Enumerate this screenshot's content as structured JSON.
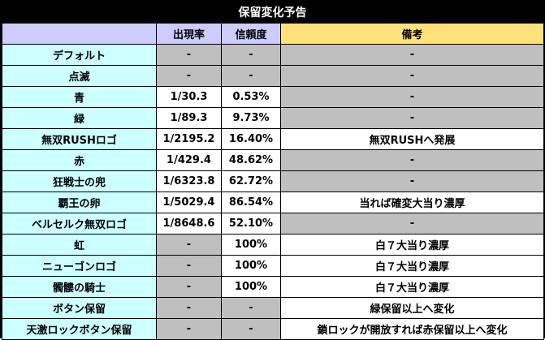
{
  "title": "保留変化予告",
  "headers": {
    "name": "",
    "rate": "出現率",
    "trust": "信頼度",
    "note": "備考"
  },
  "rows": [
    {
      "name": "デフォルト",
      "rate": "-",
      "trust": "-",
      "note": "-",
      "rate_gray": true,
      "trust_gray": true,
      "note_gray": true
    },
    {
      "name": "点滅",
      "rate": "-",
      "trust": "-",
      "note": "-",
      "rate_gray": true,
      "trust_gray": true,
      "note_gray": true
    },
    {
      "name": "青",
      "rate": "1/30.3",
      "trust": "0.53%",
      "note": "-",
      "rate_gray": false,
      "trust_gray": false,
      "note_gray": true
    },
    {
      "name": "緑",
      "rate": "1/89.3",
      "trust": "9.73%",
      "note": "-",
      "rate_gray": false,
      "trust_gray": false,
      "note_gray": true
    },
    {
      "name": "無双RUSHロゴ",
      "rate": "1/2195.2",
      "trust": "16.40%",
      "note": "無双RUSHへ発展",
      "rate_gray": false,
      "trust_gray": false,
      "note_gray": false
    },
    {
      "name": "赤",
      "rate": "1/429.4",
      "trust": "48.62%",
      "note": "-",
      "rate_gray": false,
      "trust_gray": false,
      "note_gray": true
    },
    {
      "name": "狂戦士の兜",
      "rate": "1/6323.8",
      "trust": "62.72%",
      "note": "-",
      "rate_gray": false,
      "trust_gray": false,
      "note_gray": true
    },
    {
      "name": "覇王の卵",
      "rate": "1/5029.4",
      "trust": "86.54%",
      "note": "当れば確変大当り濃厚",
      "rate_gray": false,
      "trust_gray": false,
      "note_gray": false
    },
    {
      "name": "ベルセルク無双ロゴ",
      "rate": "1/8648.6",
      "trust": "52.10%",
      "note": "-",
      "rate_gray": false,
      "trust_gray": false,
      "note_gray": true
    },
    {
      "name": "虹",
      "rate": "-",
      "trust": "100%",
      "note": "白７大当り濃厚",
      "rate_gray": true,
      "trust_gray": false,
      "note_gray": false
    },
    {
      "name": "ニューゴンロゴ",
      "rate": "-",
      "trust": "100%",
      "note": "白７大当り濃厚",
      "rate_gray": true,
      "trust_gray": false,
      "note_gray": false
    },
    {
      "name": "髑髏の騎士",
      "rate": "-",
      "trust": "100%",
      "note": "白７大当り濃厚",
      "rate_gray": true,
      "trust_gray": false,
      "note_gray": false
    },
    {
      "name": "ボタン保留",
      "rate": "-",
      "trust": "-",
      "note": "緑保留以上へ変化",
      "rate_gray": true,
      "trust_gray": true,
      "note_gray": false
    },
    {
      "name": "天激ロックボタン保留",
      "rate": "-",
      "trust": "-",
      "note": "鎖ロックが開放すれば赤保留以上へ変化",
      "rate_gray": true,
      "trust_gray": true,
      "note_gray": false
    }
  ]
}
